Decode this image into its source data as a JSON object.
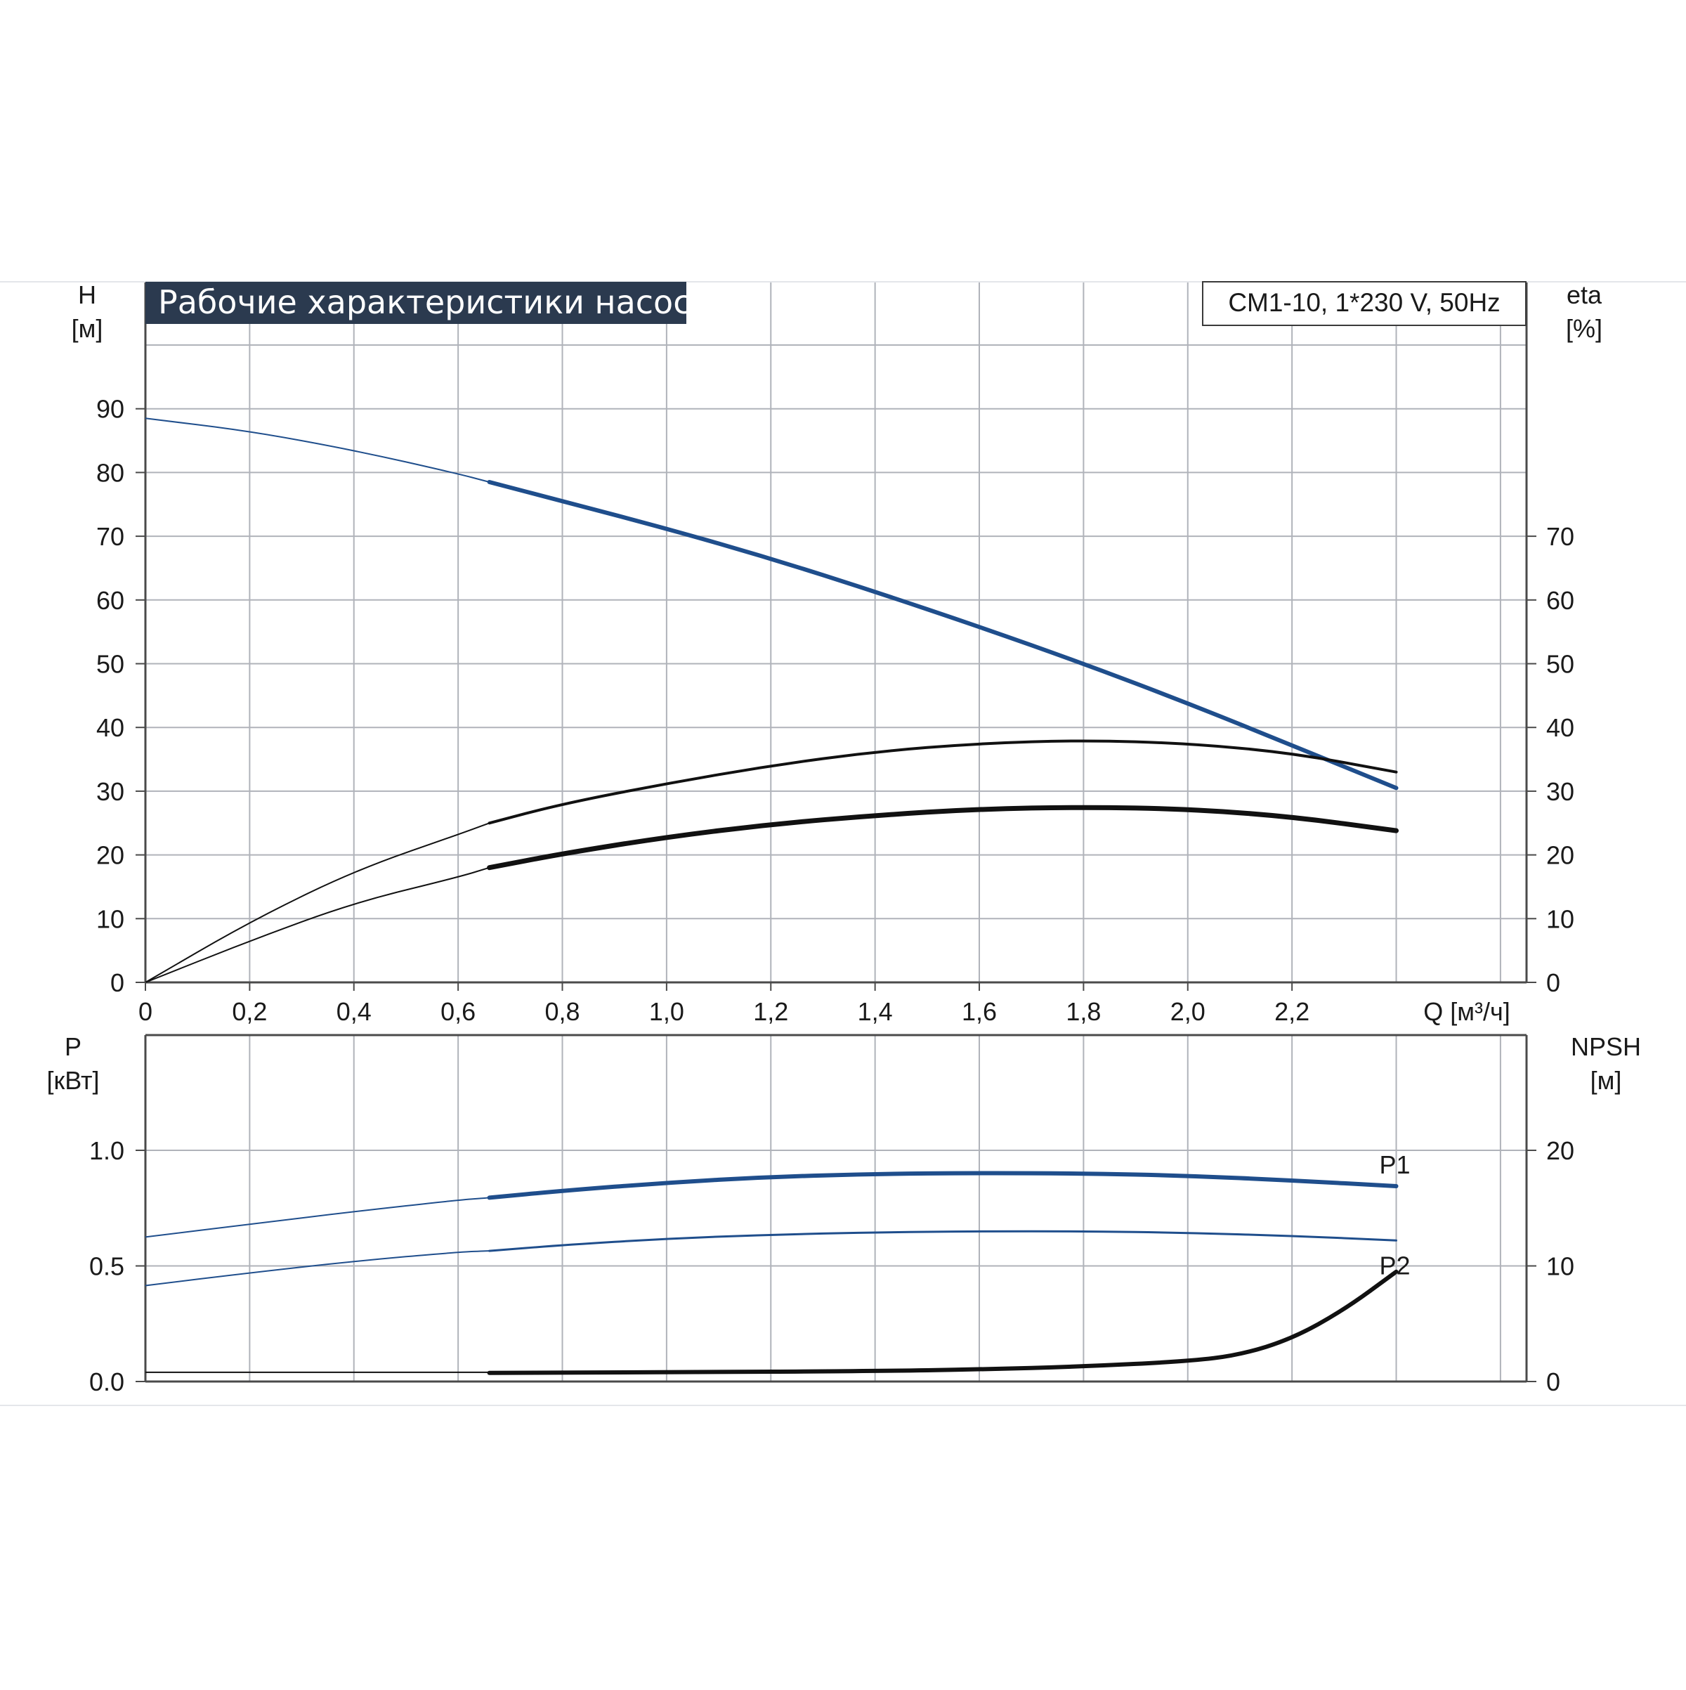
{
  "chart_data": [
    {
      "type": "line",
      "title": "Рабочие характеристики насоса",
      "model": "CM1-10, 1*230 V, 50Hz",
      "xlabel": "Q [м³/ч]",
      "ylabel_left": [
        "H",
        "[м]"
      ],
      "ylabel_right": [
        "eta",
        "[%]"
      ],
      "xlim": [
        0,
        2.65
      ],
      "ylim_left": [
        0,
        100
      ],
      "ylim_right": [
        0,
        100
      ],
      "x_ticks": [
        {
          "v": 0,
          "label": "0"
        },
        {
          "v": 0.2,
          "label": "0,2"
        },
        {
          "v": 0.4,
          "label": "0,4"
        },
        {
          "v": 0.6,
          "label": "0,6"
        },
        {
          "v": 0.8,
          "label": "0,8"
        },
        {
          "v": 1.0,
          "label": "1,0"
        },
        {
          "v": 1.2,
          "label": "1,2"
        },
        {
          "v": 1.4,
          "label": "1,4"
        },
        {
          "v": 1.6,
          "label": "1,6"
        },
        {
          "v": 1.8,
          "label": "1,8"
        },
        {
          "v": 2.0,
          "label": "2,0"
        },
        {
          "v": 2.2,
          "label": "2,2"
        }
      ],
      "y_ticks_left": [
        "0",
        "10",
        "20",
        "30",
        "40",
        "50",
        "60",
        "70",
        "80",
        "90"
      ],
      "y_ticks_right": [
        "0",
        "10",
        "20",
        "30",
        "40",
        "50",
        "60",
        "70"
      ],
      "grid": true,
      "colors": {
        "head": "#1f4e8c",
        "eta": "#111111",
        "grid": "#b0b3ba",
        "axis": "#4a4a4a"
      },
      "series": [
        {
          "key": "head",
          "x": [
            0,
            0.2,
            0.4,
            0.6,
            0.66,
            0.8,
            1.0,
            1.2,
            1.4,
            1.6,
            1.8,
            2.0,
            2.2,
            2.4
          ],
          "y": [
            88.5,
            86.5,
            83.5,
            79.8,
            78.5,
            75.5,
            71.2,
            66.5,
            61.3,
            55.8,
            50.0,
            43.8,
            37.2,
            30.5
          ]
        },
        {
          "key": "eta_total",
          "x": [
            0,
            0.2,
            0.4,
            0.6,
            0.66,
            0.8,
            1.0,
            1.2,
            1.4,
            1.6,
            1.8,
            2.0,
            2.2,
            2.4
          ],
          "y": [
            0,
            9.5,
            17.5,
            23.2,
            25,
            28,
            31.2,
            34,
            36.2,
            37.5,
            38,
            37.5,
            36,
            33
          ]
        },
        {
          "key": "eta_hydraulic",
          "x": [
            0,
            0.2,
            0.4,
            0.6,
            0.66,
            0.8,
            1.0,
            1.2,
            1.4,
            1.6,
            1.8,
            2.0,
            2.2,
            2.4
          ],
          "y": [
            0,
            6.5,
            12.5,
            16.5,
            18,
            20.2,
            22.8,
            24.8,
            26.2,
            27.2,
            27.5,
            27.2,
            26,
            23.8
          ]
        }
      ],
      "operating_range_start": 0.66
    },
    {
      "type": "line",
      "ylabel_left": [
        "P",
        "[кВт]"
      ],
      "ylabel_right": [
        "NPSH",
        "[м]"
      ],
      "xlim": [
        0,
        2.65
      ],
      "ylim_left": [
        0,
        1.5
      ],
      "ylim_right": [
        0,
        30
      ],
      "y_ticks_left": [
        {
          "v": 0,
          "label": "0.0"
        },
        {
          "v": 0.5,
          "label": "0.5"
        },
        {
          "v": 1.0,
          "label": "1.0"
        }
      ],
      "y_ticks_right": [
        {
          "v": 0,
          "label": "0"
        },
        {
          "v": 10,
          "label": "10"
        },
        {
          "v": 20,
          "label": "20"
        }
      ],
      "series": [
        {
          "key": "p1",
          "name": "P1",
          "x": [
            0,
            0.2,
            0.4,
            0.6,
            0.66,
            0.8,
            1.0,
            1.2,
            1.4,
            1.6,
            1.8,
            2.0,
            2.2,
            2.4
          ],
          "y": [
            0.625,
            0.68,
            0.735,
            0.785,
            0.795,
            0.825,
            0.86,
            0.885,
            0.898,
            0.902,
            0.9,
            0.89,
            0.87,
            0.845
          ]
        },
        {
          "key": "p2",
          "name": "P2",
          "x": [
            0,
            0.2,
            0.4,
            0.6,
            0.66,
            0.8,
            1.0,
            1.2,
            1.4,
            1.6,
            1.8,
            2.0,
            2.2,
            2.4
          ],
          "y": [
            0.415,
            0.47,
            0.52,
            0.56,
            0.565,
            0.59,
            0.618,
            0.635,
            0.645,
            0.65,
            0.65,
            0.643,
            0.63,
            0.61
          ]
        },
        {
          "key": "npsh",
          "x": [
            0,
            0.66,
            0.66,
            1.0,
            1.4,
            1.6,
            1.8,
            2.0,
            2.1,
            2.2,
            2.3,
            2.4
          ],
          "y": [
            0.8,
            0.8,
            0.75,
            0.8,
            0.9,
            1.05,
            1.3,
            1.75,
            2.3,
            3.7,
            6.2,
            9.5
          ]
        }
      ]
    }
  ]
}
